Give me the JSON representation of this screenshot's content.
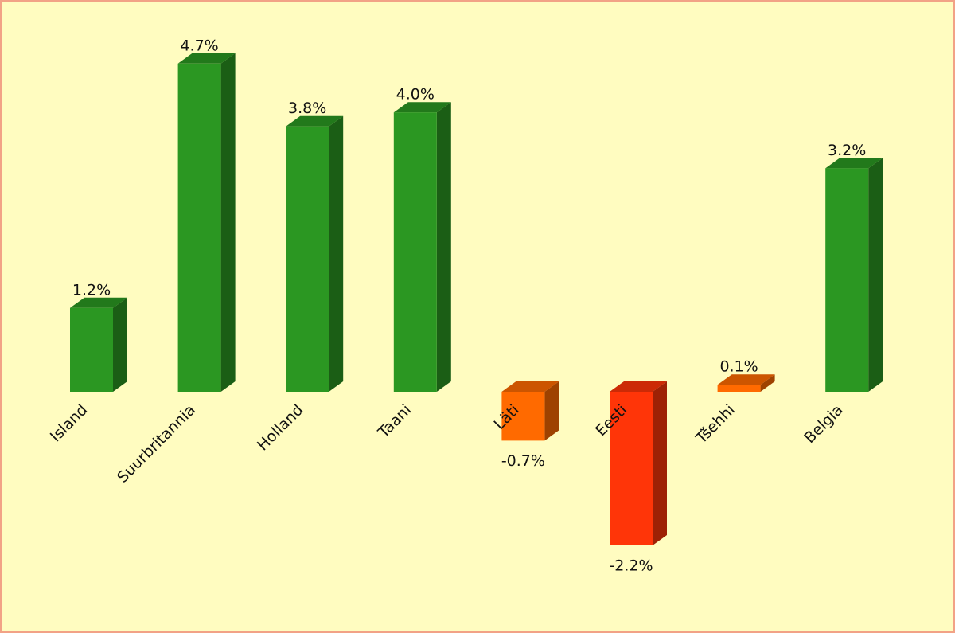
{
  "chart_data": {
    "type": "bar",
    "categories": [
      "Island",
      "Suurbritannia",
      "Holland",
      "Taani",
      "Läti",
      "Eesti",
      "Tšehhi",
      "Belgia"
    ],
    "values": [
      1.2,
      4.7,
      3.8,
      4.0,
      -0.7,
      -2.2,
      0.1,
      3.2
    ],
    "value_labels": [
      "1.2%",
      "4.7%",
      "3.8%",
      "4.0%",
      "-0.7%",
      "-2.2%",
      "0.1%",
      "3.2%"
    ],
    "colors": [
      "#2b9722",
      "#2b9722",
      "#2b9722",
      "#2b9722",
      "#ff6a00",
      "#ff3508",
      "#ff6a00",
      "#2b9722"
    ]
  }
}
